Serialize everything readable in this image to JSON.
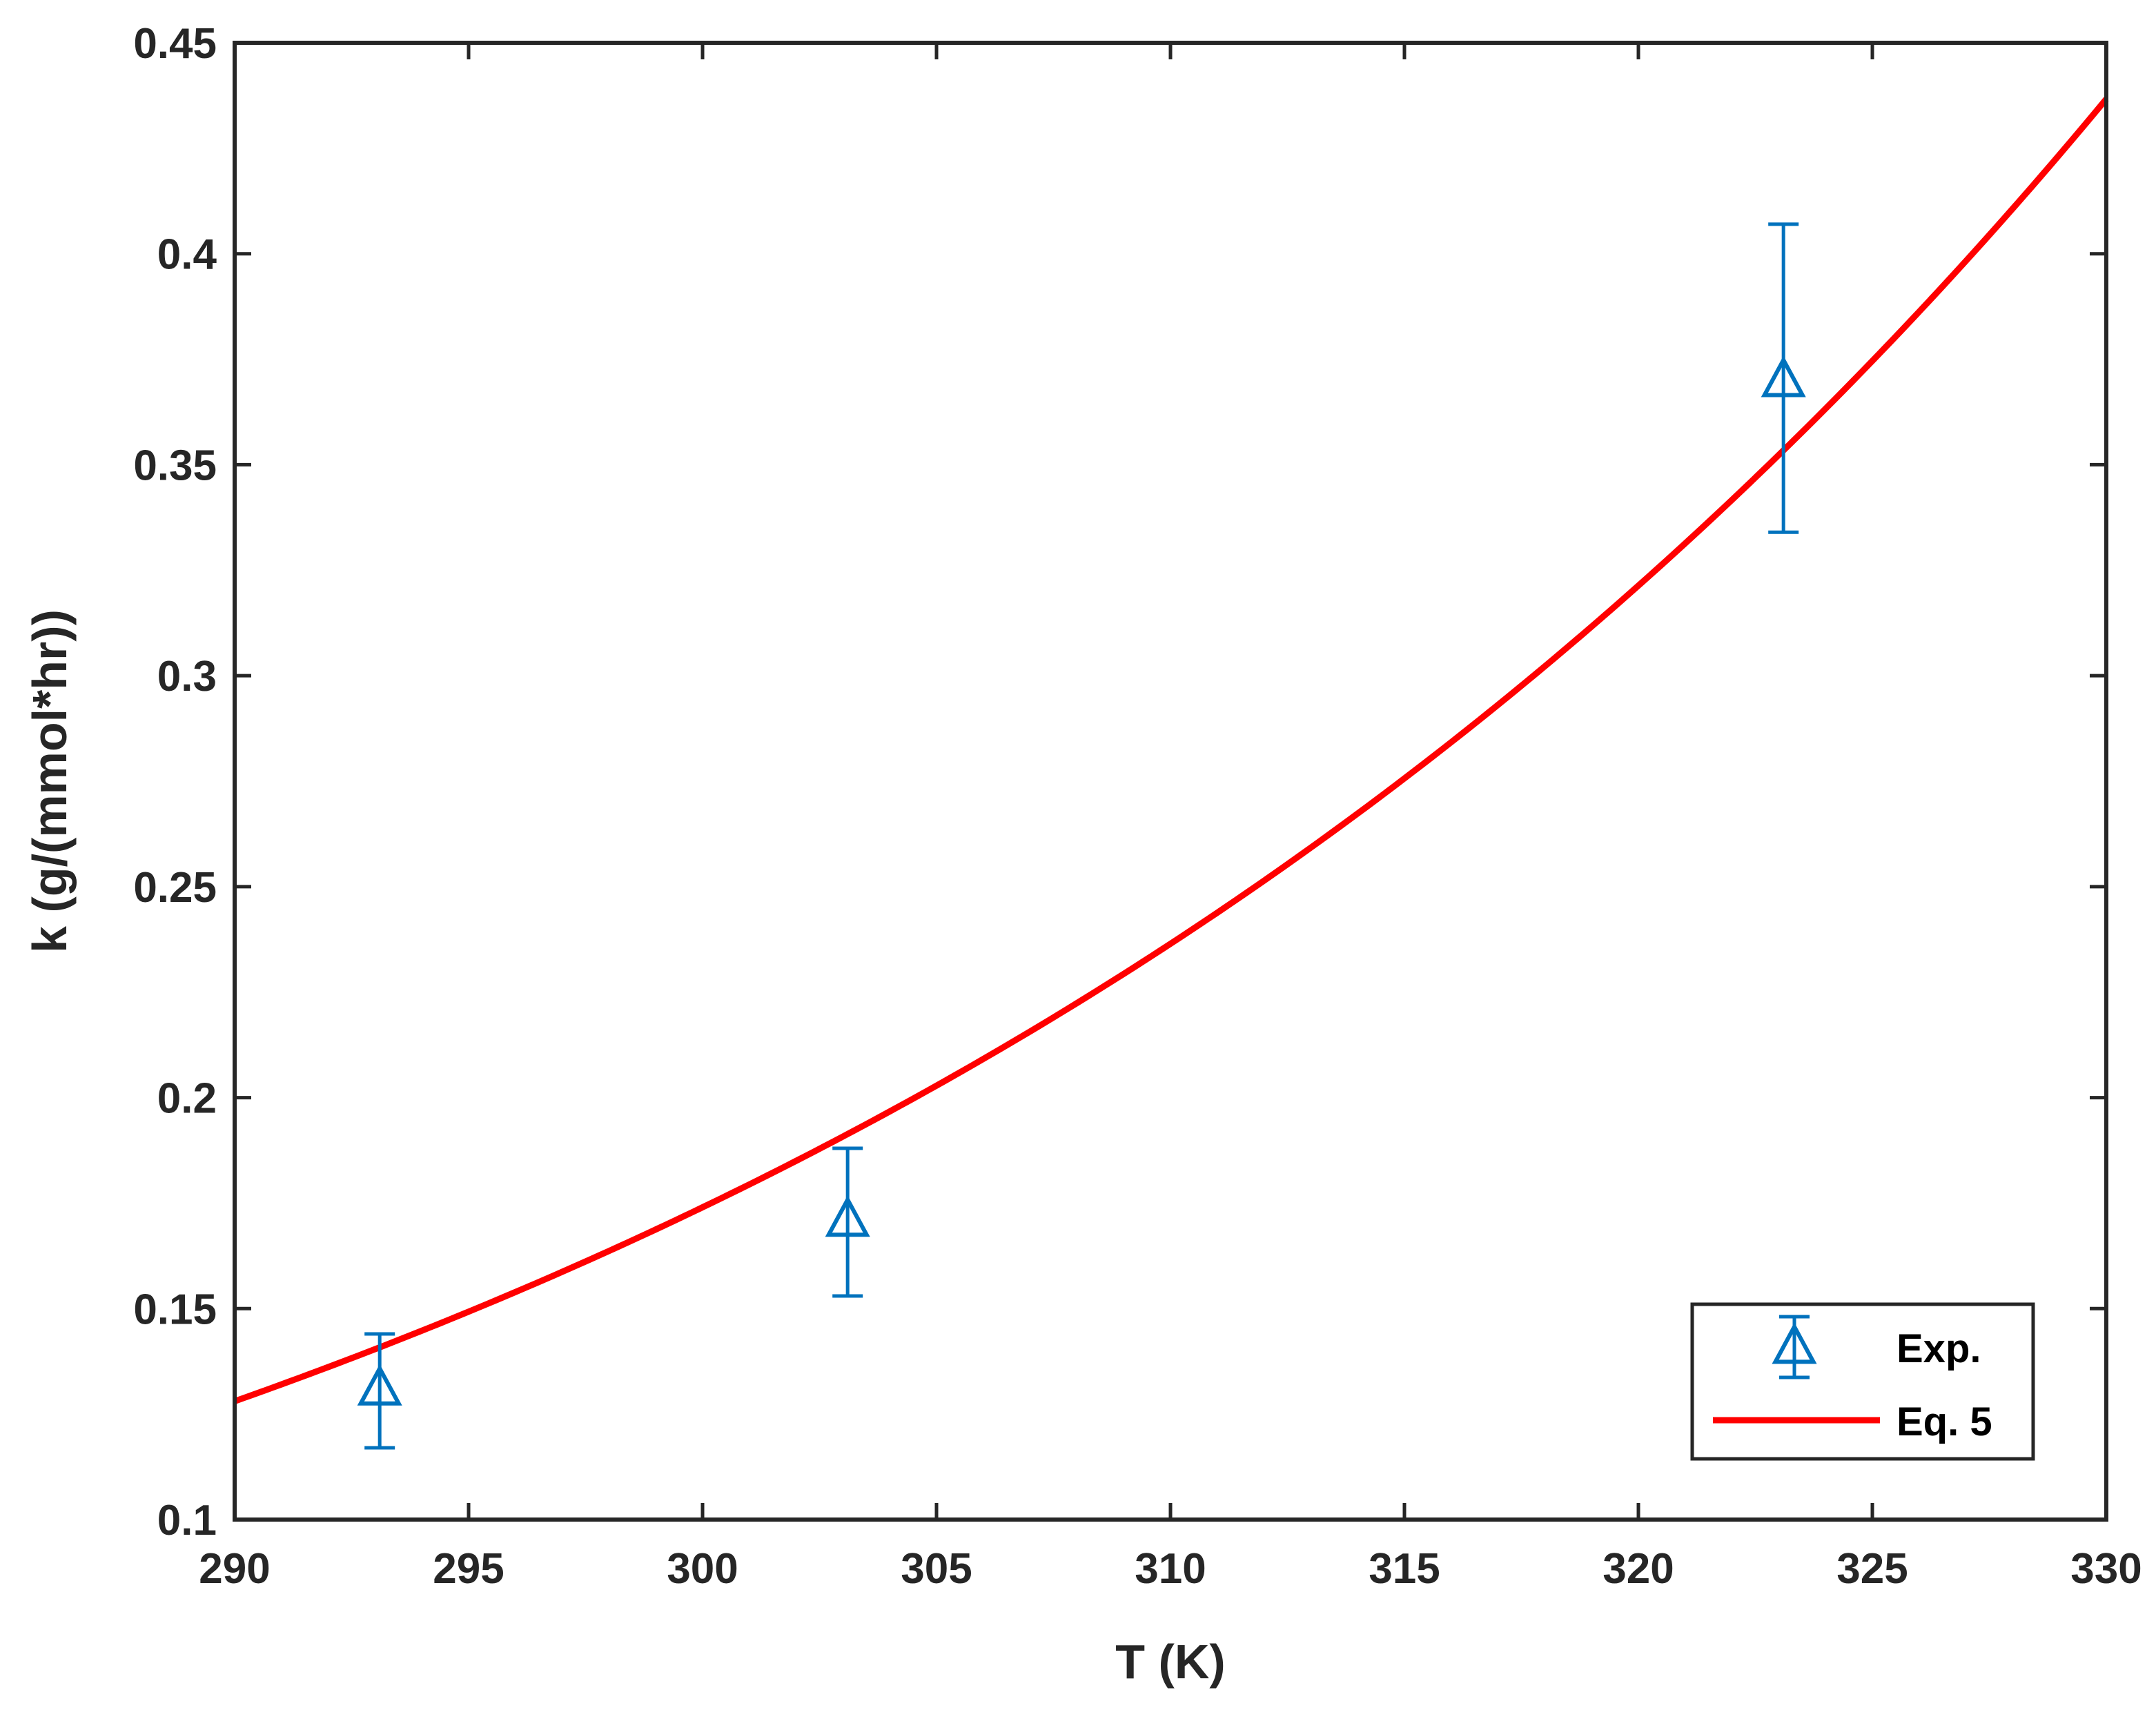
{
  "chart_data": {
    "type": "scatter",
    "title": "",
    "xlabel": "T (K)",
    "ylabel": "k (g/(mmol*hr))",
    "xlim": [
      290,
      330
    ],
    "ylim": [
      0.1,
      0.45
    ],
    "xticks": [
      290,
      295,
      300,
      305,
      310,
      315,
      320,
      325,
      330
    ],
    "yticks": [
      0.1,
      0.15,
      0.2,
      0.25,
      0.3,
      0.35,
      0.4,
      0.45
    ],
    "xtick_labels": [
      "290",
      "295",
      "300",
      "305",
      "310",
      "315",
      "320",
      "325",
      "330"
    ],
    "ytick_labels": [
      "0.1",
      "0.15",
      "0.2",
      "0.25",
      "0.3",
      "0.35",
      "0.4",
      "0.45"
    ],
    "grid": false,
    "legend_position": "bottom-right",
    "series": [
      {
        "name": "Exp.",
        "kind": "errorbar",
        "marker": "triangle-open",
        "color": "#0072BD",
        "x": [
          293.1,
          303.1,
          323.1
        ],
        "y": [
          0.131,
          0.171,
          0.37
        ],
        "err_low": [
          0.117,
          0.153,
          0.334
        ],
        "err_high": [
          0.144,
          0.188,
          0.407
        ]
      },
      {
        "name": "Eq. 5",
        "kind": "line",
        "color": "#FF0000",
        "x": [
          290,
          295,
          300,
          305,
          310,
          315,
          320,
          325,
          330
        ],
        "y": [
          0.125,
          0.149,
          0.175,
          0.205,
          0.24,
          0.28,
          0.324,
          0.373,
          0.426
        ]
      }
    ]
  }
}
